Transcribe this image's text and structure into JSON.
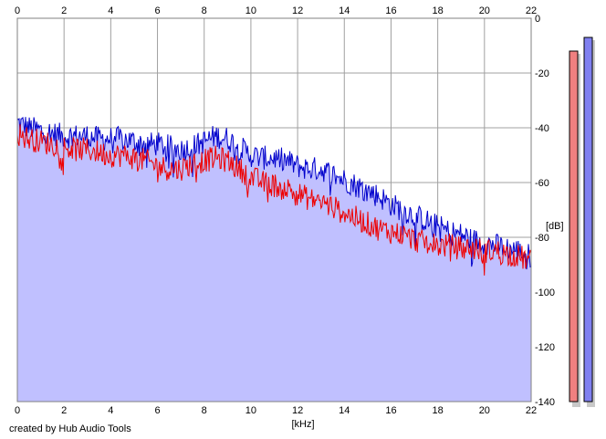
{
  "chart_data": {
    "type": "line",
    "title": "",
    "xlabel": "[kHz]",
    "ylabel": "[dB]",
    "xlim": [
      0,
      22
    ],
    "ylim": [
      -140,
      0
    ],
    "x_ticks": [
      "0",
      "2",
      "4",
      "6",
      "8",
      "10",
      "12",
      "14",
      "16",
      "18",
      "20",
      "22"
    ],
    "y_ticks": [
      "0",
      "-20",
      "-40",
      "-60",
      "-80",
      "-100",
      "-120",
      "-140"
    ],
    "grid": true,
    "series": [
      {
        "color": "#0000cc",
        "fill": "#c0c0ff",
        "points": [
          [
            0,
            -38
          ],
          [
            0.5,
            -40
          ],
          [
            1,
            -41
          ],
          [
            1.5,
            -42
          ],
          [
            2,
            -43
          ],
          [
            2.5,
            -43
          ],
          [
            3,
            -43
          ],
          [
            3.5,
            -44
          ],
          [
            4,
            -44
          ],
          [
            4.5,
            -44
          ],
          [
            5,
            -45
          ],
          [
            5.5,
            -46
          ],
          [
            6,
            -46
          ],
          [
            6.5,
            -47
          ],
          [
            7,
            -48
          ],
          [
            7.5,
            -47
          ],
          [
            8,
            -45
          ],
          [
            8.5,
            -43
          ],
          [
            9,
            -44
          ],
          [
            9.5,
            -47
          ],
          [
            10,
            -50
          ],
          [
            10.5,
            -51
          ],
          [
            11,
            -51
          ],
          [
            11.5,
            -52
          ],
          [
            12,
            -54
          ],
          [
            12.5,
            -55
          ],
          [
            13,
            -55
          ],
          [
            13.5,
            -57
          ],
          [
            14,
            -59
          ],
          [
            14.5,
            -61
          ],
          [
            15,
            -63
          ],
          [
            15.5,
            -65
          ],
          [
            16,
            -68
          ],
          [
            16.5,
            -70
          ],
          [
            17,
            -72
          ],
          [
            17.5,
            -74
          ],
          [
            18,
            -76
          ],
          [
            18.5,
            -78
          ],
          [
            19,
            -79
          ],
          [
            19.5,
            -81
          ],
          [
            20,
            -82
          ],
          [
            20.5,
            -83
          ],
          [
            21,
            -84
          ],
          [
            21.5,
            -85
          ],
          [
            22,
            -87
          ]
        ]
      },
      {
        "color": "#ee0000",
        "points": [
          [
            0,
            -42
          ],
          [
            0.5,
            -44
          ],
          [
            1,
            -45
          ],
          [
            1.5,
            -46
          ],
          [
            2,
            -47
          ],
          [
            2.5,
            -48
          ],
          [
            3,
            -48
          ],
          [
            3.5,
            -49
          ],
          [
            4,
            -50
          ],
          [
            4.5,
            -50
          ],
          [
            5,
            -51
          ],
          [
            5.5,
            -52
          ],
          [
            6,
            -54
          ],
          [
            6.5,
            -55
          ],
          [
            7,
            -55
          ],
          [
            7.5,
            -53
          ],
          [
            8,
            -52
          ],
          [
            8.5,
            -51
          ],
          [
            9,
            -52
          ],
          [
            9.5,
            -55
          ],
          [
            10,
            -58
          ],
          [
            10.5,
            -60
          ],
          [
            11,
            -61
          ],
          [
            11.5,
            -62
          ],
          [
            12,
            -64
          ],
          [
            12.5,
            -66
          ],
          [
            13,
            -67
          ],
          [
            13.5,
            -69
          ],
          [
            14,
            -71
          ],
          [
            14.5,
            -73
          ],
          [
            15,
            -75
          ],
          [
            15.5,
            -77
          ],
          [
            16,
            -78
          ],
          [
            16.5,
            -79
          ],
          [
            17,
            -81
          ],
          [
            17.5,
            -82
          ],
          [
            18,
            -83
          ],
          [
            18.5,
            -83
          ],
          [
            19,
            -84
          ],
          [
            19.5,
            -84
          ],
          [
            20,
            -85
          ],
          [
            20.5,
            -85
          ],
          [
            21,
            -86
          ],
          [
            21.5,
            -87
          ],
          [
            22,
            -89
          ]
        ]
      }
    ],
    "level_meters": [
      {
        "color": "#f08080",
        "value_db": -12
      },
      {
        "color": "#8080f0",
        "value_db": -7
      }
    ]
  },
  "footer": {
    "credit": "created by Hub Audio Tools"
  }
}
